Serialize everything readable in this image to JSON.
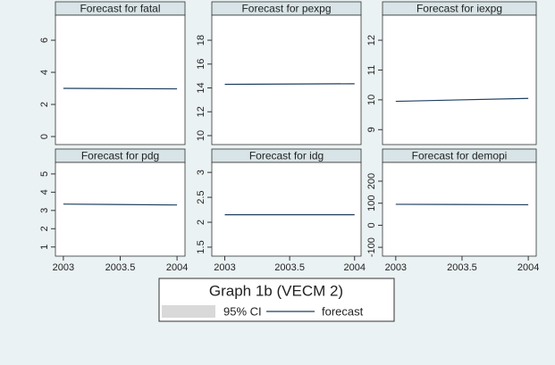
{
  "title": "Graph 1b (VECM 2)",
  "legend": [
    {
      "name": "95% CI",
      "color": "#d9d9d9"
    }
  ],
  "chart_data": [
    {
      "type": "line",
      "title": "Forecast for fatal",
      "x": [
        2003,
        2004
      ],
      "series": [
        {
          "name": "forecast",
          "color": "#1f3f5f",
          "values": [
            3.0,
            2.97
          ]
        }
      ],
      "xlim": [
        2002.93,
        2004.07
      ],
      "ylim": [
        -0.5,
        7.56
      ],
      "yticks": [
        0,
        2,
        4,
        6
      ]
    },
    {
      "type": "line",
      "title": "Forecast for pexpg",
      "x": [
        2003,
        2004
      ],
      "series": [
        {
          "name": "forecast",
          "color": "#1f3f5f",
          "values": [
            14.3,
            14.35
          ]
        }
      ],
      "xlim": [
        2002.9,
        2004.05
      ],
      "ylim": [
        9.25,
        20.1
      ],
      "yticks": [
        10,
        12,
        14,
        16,
        18
      ]
    },
    {
      "type": "line",
      "title": "Forecast for iexpg",
      "x": [
        2003,
        2004
      ],
      "series": [
        {
          "name": "forecast",
          "color": "#1f3f5f",
          "values": [
            9.95,
            10.05
          ]
        }
      ],
      "xlim": [
        2002.9,
        2004.06
      ],
      "ylim": [
        8.5,
        12.84
      ],
      "yticks": [
        9,
        10,
        11,
        12
      ]
    },
    {
      "type": "line",
      "title": "Forecast for pdg",
      "x": [
        2003,
        2004
      ],
      "series": [
        {
          "name": "forecast",
          "color": "#1f3f5f",
          "values": [
            3.35,
            3.3
          ]
        }
      ],
      "xlim": [
        2002.93,
        2004.07
      ],
      "ylim": [
        0.5,
        5.63
      ],
      "yticks": [
        1,
        2,
        3,
        4,
        5
      ],
      "xticks": [
        2003,
        2003.5,
        2004
      ]
    },
    {
      "type": "line",
      "title": "Forecast for idg",
      "x": [
        2003,
        2004
      ],
      "series": [
        {
          "name": "forecast",
          "color": "#1f3f5f",
          "values": [
            2.15,
            2.15
          ]
        }
      ],
      "xlim": [
        2002.9,
        2004.05
      ],
      "ylim": [
        1.32,
        3.2
      ],
      "yticks": [
        1.5,
        2,
        2.5,
        3
      ],
      "xticks": [
        2003,
        2003.5,
        2004
      ]
    },
    {
      "type": "line",
      "title": "Forecast for demopi",
      "x": [
        2003,
        2004
      ],
      "series": [
        {
          "name": "forecast",
          "color": "#1f3f5f",
          "values": [
            95,
            93
          ]
        }
      ],
      "xlim": [
        2002.9,
        2004.06
      ],
      "ylim": [
        -140,
        285
      ],
      "yticks": [
        -100,
        0,
        100,
        200
      ],
      "xticks": [
        2003,
        2003.5,
        2004
      ]
    }
  ]
}
